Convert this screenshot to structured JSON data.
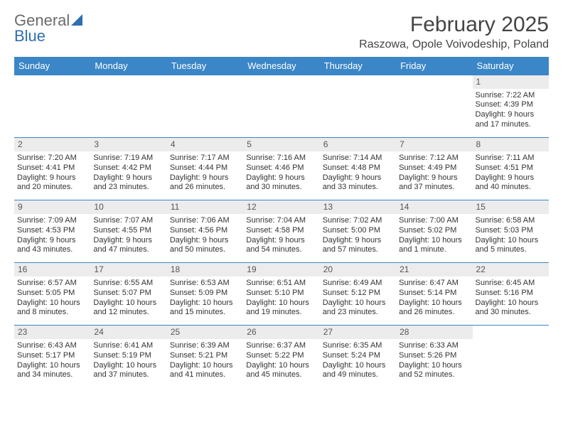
{
  "logo": {
    "text1": "General",
    "text2": "Blue"
  },
  "title": "February 2025",
  "location": "Raszowa, Opole Voivodeship, Poland",
  "colors": {
    "header_bg": "#3b86c6",
    "header_text": "#ffffff",
    "daynum_bg": "#ececec",
    "border": "#3b86c6",
    "logo_blue": "#2f6fb0",
    "text": "#333333"
  },
  "weekdays": [
    "Sunday",
    "Monday",
    "Tuesday",
    "Wednesday",
    "Thursday",
    "Friday",
    "Saturday"
  ],
  "weeks": [
    [
      {
        "n": "",
        "sr": "",
        "ss": "",
        "dl": ""
      },
      {
        "n": "",
        "sr": "",
        "ss": "",
        "dl": ""
      },
      {
        "n": "",
        "sr": "",
        "ss": "",
        "dl": ""
      },
      {
        "n": "",
        "sr": "",
        "ss": "",
        "dl": ""
      },
      {
        "n": "",
        "sr": "",
        "ss": "",
        "dl": ""
      },
      {
        "n": "",
        "sr": "",
        "ss": "",
        "dl": ""
      },
      {
        "n": "1",
        "sr": "Sunrise: 7:22 AM",
        "ss": "Sunset: 4:39 PM",
        "dl": "Daylight: 9 hours and 17 minutes."
      }
    ],
    [
      {
        "n": "2",
        "sr": "Sunrise: 7:20 AM",
        "ss": "Sunset: 4:41 PM",
        "dl": "Daylight: 9 hours and 20 minutes."
      },
      {
        "n": "3",
        "sr": "Sunrise: 7:19 AM",
        "ss": "Sunset: 4:42 PM",
        "dl": "Daylight: 9 hours and 23 minutes."
      },
      {
        "n": "4",
        "sr": "Sunrise: 7:17 AM",
        "ss": "Sunset: 4:44 PM",
        "dl": "Daylight: 9 hours and 26 minutes."
      },
      {
        "n": "5",
        "sr": "Sunrise: 7:16 AM",
        "ss": "Sunset: 4:46 PM",
        "dl": "Daylight: 9 hours and 30 minutes."
      },
      {
        "n": "6",
        "sr": "Sunrise: 7:14 AM",
        "ss": "Sunset: 4:48 PM",
        "dl": "Daylight: 9 hours and 33 minutes."
      },
      {
        "n": "7",
        "sr": "Sunrise: 7:12 AM",
        "ss": "Sunset: 4:49 PM",
        "dl": "Daylight: 9 hours and 37 minutes."
      },
      {
        "n": "8",
        "sr": "Sunrise: 7:11 AM",
        "ss": "Sunset: 4:51 PM",
        "dl": "Daylight: 9 hours and 40 minutes."
      }
    ],
    [
      {
        "n": "9",
        "sr": "Sunrise: 7:09 AM",
        "ss": "Sunset: 4:53 PM",
        "dl": "Daylight: 9 hours and 43 minutes."
      },
      {
        "n": "10",
        "sr": "Sunrise: 7:07 AM",
        "ss": "Sunset: 4:55 PM",
        "dl": "Daylight: 9 hours and 47 minutes."
      },
      {
        "n": "11",
        "sr": "Sunrise: 7:06 AM",
        "ss": "Sunset: 4:56 PM",
        "dl": "Daylight: 9 hours and 50 minutes."
      },
      {
        "n": "12",
        "sr": "Sunrise: 7:04 AM",
        "ss": "Sunset: 4:58 PM",
        "dl": "Daylight: 9 hours and 54 minutes."
      },
      {
        "n": "13",
        "sr": "Sunrise: 7:02 AM",
        "ss": "Sunset: 5:00 PM",
        "dl": "Daylight: 9 hours and 57 minutes."
      },
      {
        "n": "14",
        "sr": "Sunrise: 7:00 AM",
        "ss": "Sunset: 5:02 PM",
        "dl": "Daylight: 10 hours and 1 minute."
      },
      {
        "n": "15",
        "sr": "Sunrise: 6:58 AM",
        "ss": "Sunset: 5:03 PM",
        "dl": "Daylight: 10 hours and 5 minutes."
      }
    ],
    [
      {
        "n": "16",
        "sr": "Sunrise: 6:57 AM",
        "ss": "Sunset: 5:05 PM",
        "dl": "Daylight: 10 hours and 8 minutes."
      },
      {
        "n": "17",
        "sr": "Sunrise: 6:55 AM",
        "ss": "Sunset: 5:07 PM",
        "dl": "Daylight: 10 hours and 12 minutes."
      },
      {
        "n": "18",
        "sr": "Sunrise: 6:53 AM",
        "ss": "Sunset: 5:09 PM",
        "dl": "Daylight: 10 hours and 15 minutes."
      },
      {
        "n": "19",
        "sr": "Sunrise: 6:51 AM",
        "ss": "Sunset: 5:10 PM",
        "dl": "Daylight: 10 hours and 19 minutes."
      },
      {
        "n": "20",
        "sr": "Sunrise: 6:49 AM",
        "ss": "Sunset: 5:12 PM",
        "dl": "Daylight: 10 hours and 23 minutes."
      },
      {
        "n": "21",
        "sr": "Sunrise: 6:47 AM",
        "ss": "Sunset: 5:14 PM",
        "dl": "Daylight: 10 hours and 26 minutes."
      },
      {
        "n": "22",
        "sr": "Sunrise: 6:45 AM",
        "ss": "Sunset: 5:16 PM",
        "dl": "Daylight: 10 hours and 30 minutes."
      }
    ],
    [
      {
        "n": "23",
        "sr": "Sunrise: 6:43 AM",
        "ss": "Sunset: 5:17 PM",
        "dl": "Daylight: 10 hours and 34 minutes."
      },
      {
        "n": "24",
        "sr": "Sunrise: 6:41 AM",
        "ss": "Sunset: 5:19 PM",
        "dl": "Daylight: 10 hours and 37 minutes."
      },
      {
        "n": "25",
        "sr": "Sunrise: 6:39 AM",
        "ss": "Sunset: 5:21 PM",
        "dl": "Daylight: 10 hours and 41 minutes."
      },
      {
        "n": "26",
        "sr": "Sunrise: 6:37 AM",
        "ss": "Sunset: 5:22 PM",
        "dl": "Daylight: 10 hours and 45 minutes."
      },
      {
        "n": "27",
        "sr": "Sunrise: 6:35 AM",
        "ss": "Sunset: 5:24 PM",
        "dl": "Daylight: 10 hours and 49 minutes."
      },
      {
        "n": "28",
        "sr": "Sunrise: 6:33 AM",
        "ss": "Sunset: 5:26 PM",
        "dl": "Daylight: 10 hours and 52 minutes."
      },
      {
        "n": "",
        "sr": "",
        "ss": "",
        "dl": ""
      }
    ]
  ]
}
